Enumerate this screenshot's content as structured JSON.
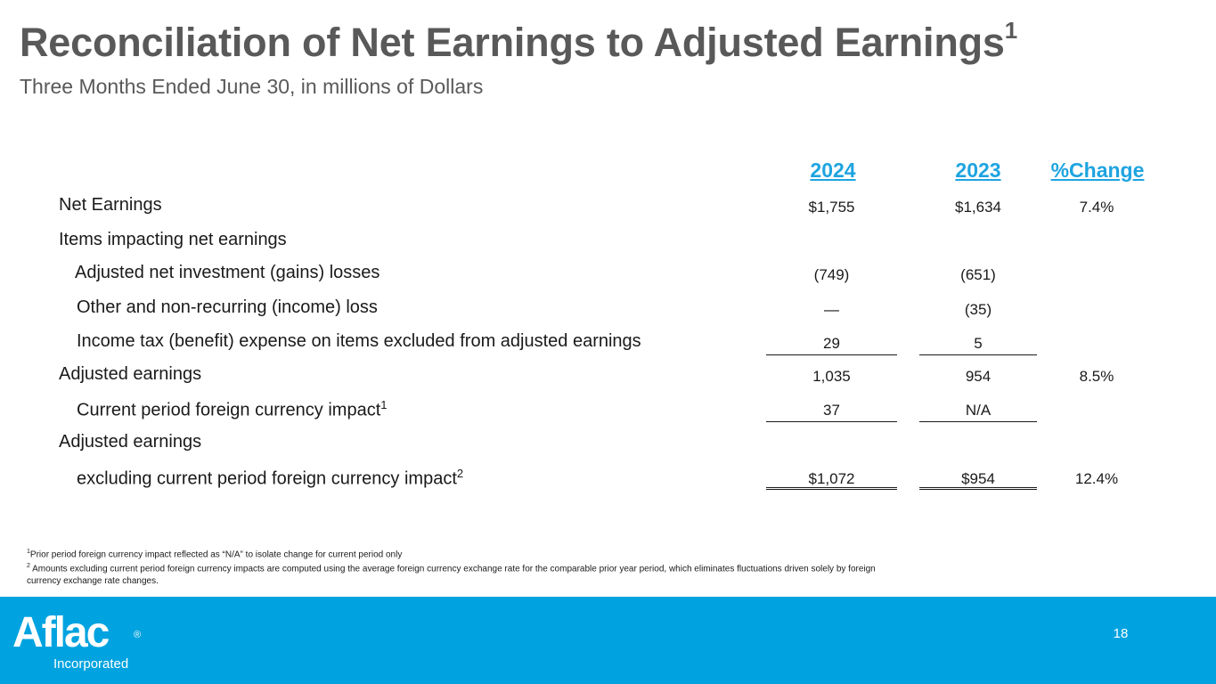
{
  "title": "Reconciliation of Net Earnings to Adjusted Earnings",
  "title_sup": "1",
  "subtitle": "Three Months Ended June 30, in millions of Dollars",
  "columns": [
    "2024",
    "2023",
    "%Change"
  ],
  "rows": [
    {
      "label": "Net Earnings",
      "v2024": "$1,755",
      "v2023": "$1,634",
      "change": "7.4%"
    },
    {
      "label": "Items impacting net earnings",
      "v2024": "",
      "v2023": "",
      "change": ""
    },
    {
      "label": "Adjusted net investment (gains) losses",
      "v2024": "(749)",
      "v2023": "(651)",
      "change": ""
    },
    {
      "label": "Other and non-recurring (income) loss",
      "v2024": "—",
      "v2023": "(35)",
      "change": ""
    },
    {
      "label": "Income tax (benefit) expense on items excluded from adjusted earnings",
      "v2024": "29",
      "v2023": "5",
      "change": ""
    },
    {
      "label": "Adjusted earnings",
      "v2024": "1,035",
      "v2023": "954",
      "change": "8.5%"
    },
    {
      "label": "Current period foreign currency impact",
      "label_sup": "1",
      "v2024": "37",
      "v2023": "N/A",
      "change": ""
    },
    {
      "label": "Adjusted earnings",
      "v2024": "",
      "v2023": "",
      "change": ""
    },
    {
      "label": "excluding current period foreign currency impact",
      "label_sup": "2",
      "v2024": "$1,072",
      "v2023": "$954",
      "change": "12.4%"
    }
  ],
  "footnotes": {
    "note1_marker": "1",
    "note1": "Prior period foreign currency impact reflected as “N/A” to isolate change for current period only",
    "note2_marker": "2",
    "note2": " Amounts excluding current period foreign currency impacts are computed using the average foreign currency exchange rate for the comparable prior year period, which eliminates fluctuations driven solely by foreign currency exchange rate changes."
  },
  "footer": {
    "logo_text": "Aflac",
    "logo_reg": "®",
    "logo_subtext": "Incorporated",
    "page_number": "18"
  },
  "colors": {
    "header_blue": "#1ea4e0",
    "footer_blue": "#00a3e0",
    "title_gray": "#595959"
  }
}
